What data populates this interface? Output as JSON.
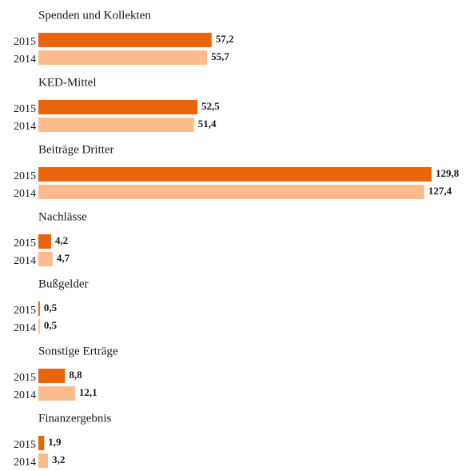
{
  "chart_data": {
    "type": "bar",
    "categories": [
      "Spenden und Kollekten",
      "KED-Mittel",
      "Beiträge Dritter",
      "Nachlässe",
      "Bußgelder",
      "Sonstige Erträge",
      "Finanzergebnis"
    ],
    "series": [
      {
        "name": "2015",
        "color": "#e8650a",
        "values": [
          57.2,
          52.5,
          129.8,
          4.2,
          0.5,
          8.8,
          1.9
        ],
        "value_labels": [
          "57,2",
          "52,5",
          "129,8",
          "4,2",
          "0,5",
          "8,8",
          "1,9"
        ]
      },
      {
        "name": "2014",
        "color": "#fbbb8c",
        "values": [
          55.7,
          51.4,
          127.4,
          4.7,
          0.5,
          12.1,
          3.2
        ],
        "value_labels": [
          "55,7",
          "51,4",
          "127,4",
          "4,7",
          "0,5",
          "12,1",
          "3,2"
        ]
      }
    ]
  }
}
